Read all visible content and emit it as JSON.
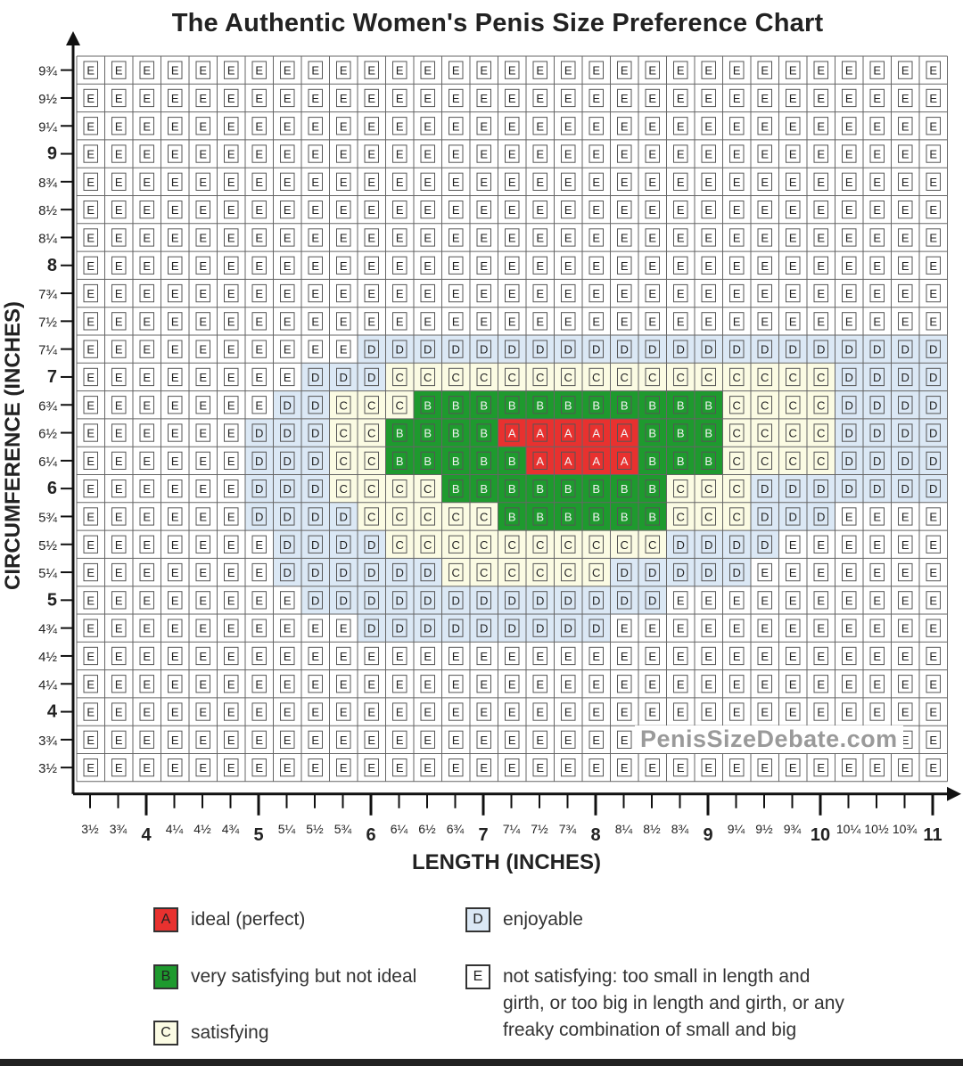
{
  "chart_data": {
    "type": "heatmap",
    "title": "The Authentic Women's Penis Size Preference Chart",
    "xlabel": "LENGTH  (INCHES)",
    "ylabel": "CIRCUMFERENCE (INCHES)",
    "x_ticks": [
      "3½",
      "3¾",
      "4",
      "4¼",
      "4½",
      "4¾",
      "5",
      "5¼",
      "5½",
      "5¾",
      "6",
      "6¼",
      "6½",
      "6¾",
      "7",
      "7¼",
      "7½",
      "7¾",
      "8",
      "8¼",
      "8½",
      "8¾",
      "9",
      "9¼",
      "9½",
      "9¾",
      "10",
      "10¼",
      "10½",
      "10¾",
      "11"
    ],
    "y_ticks_top_to_bottom": [
      "9¾",
      "9½",
      "9¼",
      "9",
      "8¾",
      "8½",
      "8¼",
      "8",
      "7¾",
      "7½",
      "7¼",
      "7",
      "6¾",
      "6½",
      "6¼",
      "6",
      "5¾",
      "5½",
      "5¼",
      "5",
      "4¾",
      "4½",
      "4¼",
      "4",
      "3¾",
      "3½"
    ],
    "grid_rows_top_to_bottom": [
      "EEEEEEEEEEEEEEEEEEEEEEEEEEEEEEE",
      "EEEEEEEEEEEEEEEEEEEEEEEEEEEEEEE",
      "EEEEEEEEEEEEEEEEEEEEEEEEEEEEEEE",
      "EEEEEEEEEEEEEEEEEEEEEEEEEEEEEEE",
      "EEEEEEEEEEEEEEEEEEEEEEEEEEEEEEE",
      "EEEEEEEEEEEEEEEEEEEEEEEEEEEEEEE",
      "EEEEEEEEEEEEEEEEEEEEEEEEEEEEEEE",
      "EEEEEEEEEEEEEEEEEEEEEEEEEEEEEEE",
      "EEEEEEEEEEEEEEEEEEEEEEEEEEEEEEE",
      "EEEEEEEEEEEEEEEEEEEEEEEEEEEEEEE",
      "EEEEEEEEEEDDDDDDDDDDDDDDDDDDDDD",
      "EEEEEEEEDDDCCCCCCCCCCCCCCCCDDDD",
      "EEEEEEEDDCCCBBBBBBBBBBBCCCCDDDD",
      "EEEEEEDDDCCBBBBAAAAABBBCCCCDDDD",
      "EEEEEEDDDCCBBBBBAAAABBBCCCCDDDD",
      "EEEEEEDDDCCCCBBBBBBBBCCCDDDDDDD",
      "EEEEEEDDDDCCCCCBBBBBBCCCDDDEEEE",
      "EEEEEEEDDDDCCCCCCCCCCDDDDEEEEEE",
      "EEEEEEEDDDDDDCCCCCCDDDDDEEEEEEE",
      "EEEEEEEEDDDDDDDDDDDDDEEEEEEEEEE",
      "EEEEEEEEEEDDDDDDDDDEEEEEEEEEEEE",
      "EEEEEEEEEEEEEEEEEEEEEEEEEEEEEEE",
      "EEEEEEEEEEEEEEEEEEEEEEEEEEEEEEE",
      "EEEEEEEEEEEEEEEEEEEEEEEEEEEEEEE",
      "EEEEEEEEEEEEEEEEEEEEEEEEEEEEEEE",
      "EEEEEEEEEEEEEEEEEEEEEEEEEEEEEEE"
    ],
    "categories": {
      "A": {
        "label": "ideal (perfect)",
        "color": "#e8312f"
      },
      "B": {
        "label": "very satisfying but not ideal",
        "color": "#1e9a2e"
      },
      "C": {
        "label": "satisfying",
        "color": "#fbfbe3"
      },
      "D": {
        "label": "enjoyable",
        "color": "#dbe8f5"
      },
      "E": {
        "label": "not satisfying: too small in length and girth, or too big in length and girth, or any freaky combination of small and big",
        "color": "#ffffff"
      }
    },
    "legend_position": "bottom"
  },
  "watermark": "PenisSizeDebate.com",
  "legend": [
    {
      "letter": "A",
      "text": "ideal (perfect)"
    },
    {
      "letter": "B",
      "text": "very satisfying but not ideal"
    },
    {
      "letter": "C",
      "text": "satisfying"
    },
    {
      "letter": "D",
      "text": "enjoyable"
    },
    {
      "letter": "E",
      "text_lines": [
        "not satisfying: too small in length and",
        "girth, or too big in length and girth, or any",
        "freaky combination of small and big"
      ]
    }
  ]
}
